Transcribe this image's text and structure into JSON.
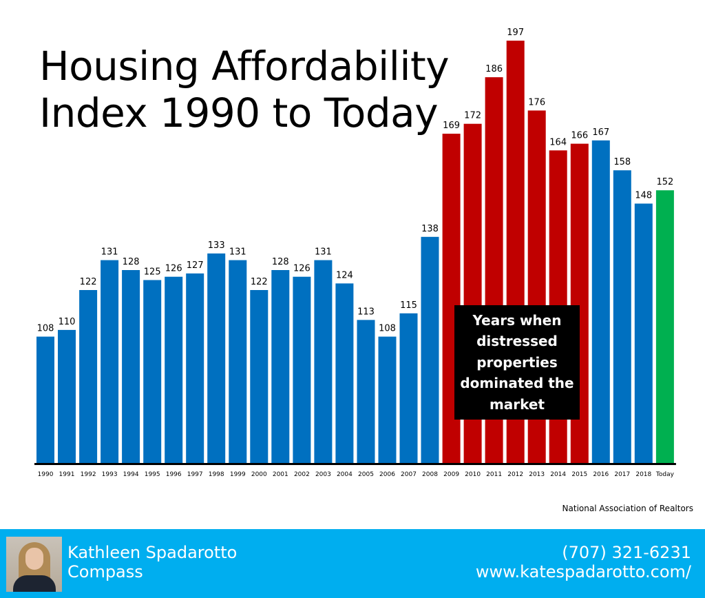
{
  "title": {
    "line1": "Housing Affordability",
    "line2": "Index 1990 to Today"
  },
  "callout": "Years when distressed properties dominated the market",
  "source": "National Association of Realtors",
  "footer": {
    "name": "Kathleen Spadarotto",
    "company": "Compass",
    "phone": "(707) 321-6231",
    "website": "www.katespadarotto.com/"
  },
  "colors": {
    "normal": "#0070c0",
    "distressed": "#c00000",
    "today": "#00b050",
    "footer": "#00aeef"
  },
  "chart_data": {
    "type": "bar",
    "title": "Housing Affordability Index 1990 to Today",
    "xlabel": "",
    "ylabel": "",
    "ylim": [
      70,
      200
    ],
    "grid": false,
    "categories": [
      "1990",
      "1991",
      "1992",
      "1993",
      "1994",
      "1995",
      "1996",
      "1997",
      "1998",
      "1999",
      "2000",
      "2001",
      "2002",
      "2003",
      "2004",
      "2005",
      "2006",
      "2007",
      "2008",
      "2009",
      "2010",
      "2011",
      "2012",
      "2013",
      "2014",
      "2015",
      "2016",
      "2017",
      "2018",
      "Today"
    ],
    "values": [
      108,
      110,
      122,
      131,
      128,
      125,
      126,
      127,
      133,
      131,
      122,
      128,
      126,
      131,
      124,
      113,
      108,
      115,
      138,
      169,
      172,
      186,
      197,
      176,
      164,
      166,
      167,
      158,
      148,
      152
    ],
    "bar_groups": [
      "normal",
      "normal",
      "normal",
      "normal",
      "normal",
      "normal",
      "normal",
      "normal",
      "normal",
      "normal",
      "normal",
      "normal",
      "normal",
      "normal",
      "normal",
      "normal",
      "normal",
      "normal",
      "normal",
      "distressed",
      "distressed",
      "distressed",
      "distressed",
      "distressed",
      "distressed",
      "distressed",
      "normal",
      "normal",
      "normal",
      "today"
    ]
  }
}
